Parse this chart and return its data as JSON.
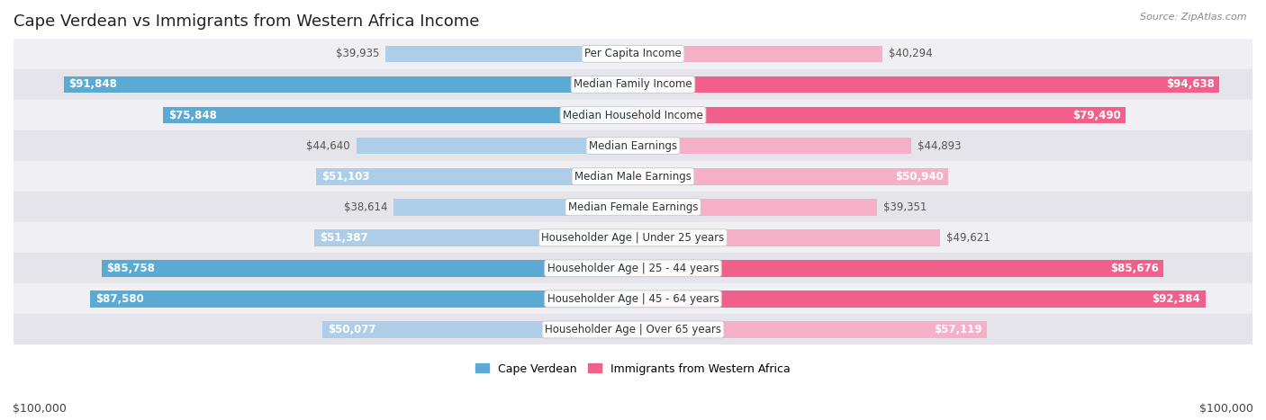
{
  "title": "Cape Verdean vs Immigrants from Western Africa Income",
  "source": "Source: ZipAtlas.com",
  "categories": [
    "Per Capita Income",
    "Median Family Income",
    "Median Household Income",
    "Median Earnings",
    "Median Male Earnings",
    "Median Female Earnings",
    "Householder Age | Under 25 years",
    "Householder Age | 25 - 44 years",
    "Householder Age | 45 - 64 years",
    "Householder Age | Over 65 years"
  ],
  "cape_verdean": [
    39935,
    91848,
    75848,
    44640,
    51103,
    38614,
    51387,
    85758,
    87580,
    50077
  ],
  "western_africa": [
    40294,
    94638,
    79490,
    44893,
    50940,
    39351,
    49621,
    85676,
    92384,
    57119
  ],
  "max_value": 100000,
  "cv_color_light": "#aecde8",
  "cv_color_dark": "#5baad4",
  "wa_color_light": "#f5b0c8",
  "wa_color_dark": "#f0608a",
  "row_bg_odd": "#f0f0f4",
  "row_bg_even": "#e4e4ea",
  "legend_cv": "Cape Verdean",
  "legend_wa": "Immigrants from Western Africa",
  "xlabel_left": "$100,000",
  "xlabel_right": "$100,000",
  "title_fontsize": 13,
  "value_fontsize": 8.5,
  "category_fontsize": 8.5,
  "source_fontsize": 8
}
